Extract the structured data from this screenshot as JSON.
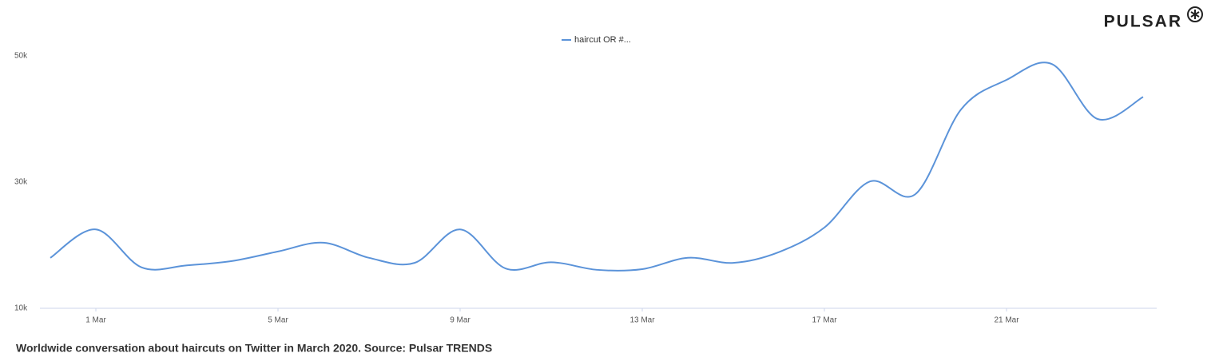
{
  "brand": "PULSAR",
  "chart_data": {
    "type": "line",
    "caption": "Worldwide conversation about haircuts on Twitter in March 2020. Source: Pulsar TRENDS",
    "categories": [
      null,
      "1 Mar",
      null,
      null,
      null,
      "5 Mar",
      null,
      null,
      null,
      "9 Mar",
      null,
      null,
      null,
      "13 Mar",
      null,
      null,
      null,
      "17 Mar",
      null,
      null,
      null,
      "21 Mar",
      null,
      null,
      null
    ],
    "series": [
      {
        "name": "haircut OR #...",
        "color": "#5b93d9",
        "values": [
          18000,
          22500,
          16500,
          16800,
          17500,
          19000,
          20400,
          18000,
          17200,
          22500,
          16300,
          17300,
          16100,
          16200,
          18000,
          17200,
          18900,
          22800,
          30100,
          28100,
          41500,
          46200,
          48700,
          40000,
          43500
        ]
      }
    ],
    "ylim": [
      10000,
      50000
    ],
    "yticks": [
      {
        "value": 10000,
        "label": "10k"
      },
      {
        "value": 30000,
        "label": "30k"
      },
      {
        "value": 50000,
        "label": "50k"
      }
    ],
    "grid": false
  }
}
